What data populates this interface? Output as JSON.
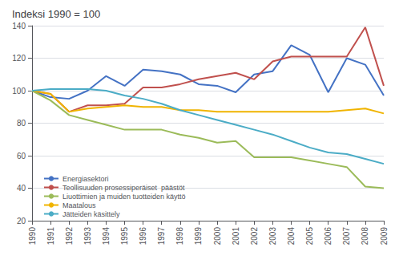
{
  "chart_data": {
    "type": "line",
    "title": "Indeksi 1990 = 100",
    "x": [
      1990,
      1991,
      1992,
      1993,
      1994,
      1995,
      1996,
      1997,
      1998,
      1999,
      2000,
      2001,
      2002,
      2003,
      2004,
      2005,
      2006,
      2007,
      2008,
      2009
    ],
    "series": [
      {
        "name": "Energiasektori",
        "color": "#4472c4",
        "values": [
          100,
          96,
          95,
          100,
          109,
          103,
          113,
          112,
          110,
          104,
          103,
          99,
          110,
          112,
          128,
          122,
          99,
          120,
          116,
          97
        ]
      },
      {
        "name": "Teollisuuden prosessiperäiset  päästöt",
        "color": "#c0504d",
        "values": [
          100,
          98,
          87,
          91,
          91,
          92,
          102,
          102,
          104,
          107,
          109,
          111,
          107,
          118,
          121,
          121,
          121,
          121,
          139,
          103
        ]
      },
      {
        "name": "Liuottimien ja muiden tuotteiden käyttö",
        "color": "#9bbb59",
        "values": [
          100,
          94,
          85,
          82,
          79,
          76,
          76,
          76,
          73,
          71,
          68,
          69,
          59,
          59,
          59,
          57,
          55,
          53,
          41,
          40
        ]
      },
      {
        "name": "Maatalous",
        "color": "#f0b400",
        "values": [
          100,
          98,
          87,
          89,
          90,
          91,
          90,
          90,
          88,
          88,
          87,
          87,
          87,
          87,
          87,
          87,
          87,
          88,
          89,
          86
        ]
      },
      {
        "name": "Jätteiden käsittely",
        "color": "#4bacc6",
        "values": [
          100,
          101,
          101,
          101,
          100,
          97,
          95,
          92,
          88,
          85,
          82,
          79,
          76,
          73,
          69,
          65,
          62,
          61,
          58,
          55
        ]
      }
    ],
    "xlim": [
      1990,
      2009
    ],
    "xticks": [
      1990,
      1991,
      1992,
      1993,
      1994,
      1995,
      1996,
      1997,
      1998,
      1999,
      2000,
      2001,
      2002,
      2003,
      2004,
      2005,
      2006,
      2007,
      2008,
      2009
    ],
    "ylim": [
      20,
      140
    ],
    "yticks": [
      20,
      40,
      60,
      80,
      100,
      120,
      140
    ],
    "grid": true,
    "legend": "lower left"
  }
}
